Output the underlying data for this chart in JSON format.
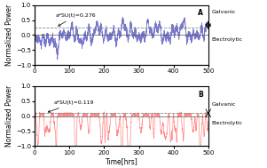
{
  "title_A": "A",
  "title_B": "B",
  "annotation_A": "a*SU(t)=0.276",
  "annotation_B": "a*SU(t)=0.119",
  "dashed_level_A": 0.25,
  "dashed_level_B": 0.1,
  "xlabel": "Time[hrs]",
  "ylabel": "Normalized Power",
  "xlim": [
    0,
    500
  ],
  "ylim": [
    -1,
    1
  ],
  "xticks": [
    0,
    100,
    200,
    300,
    400,
    500
  ],
  "yticks": [
    -1,
    -0.5,
    0,
    0.5,
    1
  ],
  "color_A": "#7777cc",
  "color_B": "#ff8888",
  "dashed_color": "#888888",
  "zero_line_color": "#555555",
  "galvanic_label": "Galvanic",
  "electrolytic_label": "Electrolytic",
  "seed": 42,
  "n_points": 2000,
  "label_fontsize": 5.5,
  "tick_fontsize": 5,
  "annot_fontsize": 4.5
}
